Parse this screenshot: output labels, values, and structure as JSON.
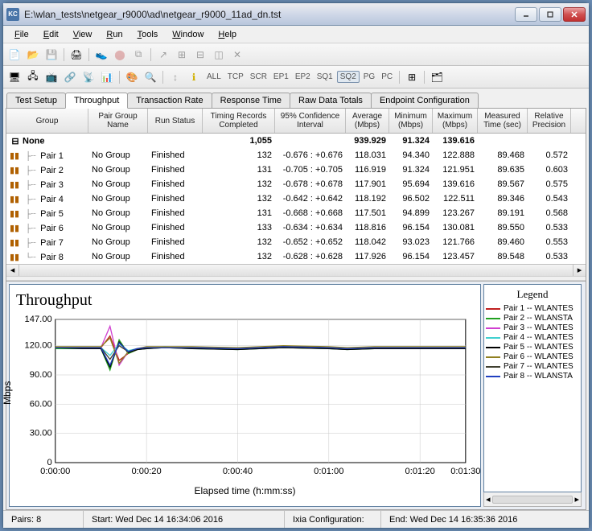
{
  "window": {
    "title": "E:\\wlan_tests\\netgear_r9000\\ad\\netgear_r9000_11ad_dn.tst",
    "icon_label": "KC"
  },
  "menus": [
    "File",
    "Edit",
    "View",
    "Run",
    "Tools",
    "Window",
    "Help"
  ],
  "tabs": {
    "items": [
      "Test Setup",
      "Throughput",
      "Transaction Rate",
      "Response Time",
      "Raw Data Totals",
      "Endpoint Configuration"
    ],
    "active": 1
  },
  "toolbar2_labels": [
    "ALL",
    "TCP",
    "SCR",
    "EP1",
    "EP2",
    "SQ1",
    "SQ2",
    "PG",
    "PC"
  ],
  "toolbar2_selected": "SQ2",
  "grid": {
    "columns": [
      {
        "label": "Group",
        "width": 102,
        "align": "l"
      },
      {
        "label": "Pair Group\nName",
        "width": 74,
        "align": "l"
      },
      {
        "label": "Run Status",
        "width": 68,
        "align": "l"
      },
      {
        "label": "Timing Records\nCompleted",
        "width": 90,
        "align": "r"
      },
      {
        "label": "95% Confidence\nInterval",
        "width": 88,
        "align": "r"
      },
      {
        "label": "Average\n(Mbps)",
        "width": 54,
        "align": "r"
      },
      {
        "label": "Minimum\n(Mbps)",
        "width": 54,
        "align": "r"
      },
      {
        "label": "Maximum\n(Mbps)",
        "width": 56,
        "align": "r"
      },
      {
        "label": "Measured\nTime (sec)",
        "width": 62,
        "align": "r"
      },
      {
        "label": "Relative\nPrecision",
        "width": 54,
        "align": "r"
      }
    ],
    "summary": {
      "label": "None",
      "timing": "1,055",
      "avg": "939.929",
      "min": "91.324",
      "max": "139.616"
    },
    "rows": [
      {
        "pair": "Pair 1",
        "group": "No Group",
        "status": "Finished",
        "timing": "132",
        "conf": "-0.676 : +0.676",
        "avg": "118.031",
        "min": "94.340",
        "max": "122.888",
        "time": "89.468",
        "prec": "0.572"
      },
      {
        "pair": "Pair 2",
        "group": "No Group",
        "status": "Finished",
        "timing": "131",
        "conf": "-0.705 : +0.705",
        "avg": "116.919",
        "min": "91.324",
        "max": "121.951",
        "time": "89.635",
        "prec": "0.603"
      },
      {
        "pair": "Pair 3",
        "group": "No Group",
        "status": "Finished",
        "timing": "132",
        "conf": "-0.678 : +0.678",
        "avg": "117.901",
        "min": "95.694",
        "max": "139.616",
        "time": "89.567",
        "prec": "0.575"
      },
      {
        "pair": "Pair 4",
        "group": "No Group",
        "status": "Finished",
        "timing": "132",
        "conf": "-0.642 : +0.642",
        "avg": "118.192",
        "min": "96.502",
        "max": "122.511",
        "time": "89.346",
        "prec": "0.543"
      },
      {
        "pair": "Pair 5",
        "group": "No Group",
        "status": "Finished",
        "timing": "131",
        "conf": "-0.668 : +0.668",
        "avg": "117.501",
        "min": "94.899",
        "max": "123.267",
        "time": "89.191",
        "prec": "0.568"
      },
      {
        "pair": "Pair 6",
        "group": "No Group",
        "status": "Finished",
        "timing": "133",
        "conf": "-0.634 : +0.634",
        "avg": "118.816",
        "min": "96.154",
        "max": "130.081",
        "time": "89.550",
        "prec": "0.533"
      },
      {
        "pair": "Pair 7",
        "group": "No Group",
        "status": "Finished",
        "timing": "132",
        "conf": "-0.652 : +0.652",
        "avg": "118.042",
        "min": "93.023",
        "max": "121.766",
        "time": "89.460",
        "prec": "0.553"
      },
      {
        "pair": "Pair 8",
        "group": "No Group",
        "status": "Finished",
        "timing": "132",
        "conf": "-0.628 : +0.628",
        "avg": "117.926",
        "min": "96.154",
        "max": "123.457",
        "time": "89.548",
        "prec": "0.533"
      }
    ]
  },
  "chart": {
    "title": "Throughput",
    "ylabel": "Mbps",
    "xlabel": "Elapsed time (h:mm:ss)",
    "yticks": [
      0,
      "30.00",
      "60.00",
      "90.00",
      "120.00",
      "147.00"
    ],
    "xticks": [
      "0:00:00",
      "0:00:20",
      "0:00:40",
      "0:01:00",
      "0:01:20",
      "0:01:30"
    ],
    "ylim": [
      0,
      147
    ],
    "xlim": [
      0,
      90
    ],
    "grid_color": "#c8c8c8",
    "background": "#ffffff",
    "series": [
      {
        "name": "Pair 1 -- WLANTES",
        "color": "#c02020"
      },
      {
        "name": "Pair 2 -- WLANSTA",
        "color": "#20a020"
      },
      {
        "name": "Pair 3 -- WLANTES",
        "color": "#d040d0"
      },
      {
        "name": "Pair 4 -- WLANTES",
        "color": "#40d0d0"
      },
      {
        "name": "Pair 5 -- WLANTES",
        "color": "#000000"
      },
      {
        "name": "Pair 6 -- WLANTES",
        "color": "#908020"
      },
      {
        "name": "Pair 7 -- WLANTES",
        "color": "#404030"
      },
      {
        "name": "Pair 8 -- WLANSTA",
        "color": "#2040c0"
      }
    ],
    "data_x": [
      0,
      6,
      10,
      12,
      14,
      16,
      18,
      20,
      24,
      30,
      40,
      50,
      60,
      64,
      70,
      80,
      90
    ],
    "data_y": [
      [
        118,
        118,
        118,
        130,
        105,
        112,
        116,
        118,
        118,
        118,
        117,
        119,
        118,
        117,
        118,
        118,
        118
      ],
      [
        117,
        117,
        117,
        95,
        126,
        112,
        116,
        117,
        118,
        117,
        116,
        118,
        117,
        116,
        117,
        117,
        117
      ],
      [
        118,
        118,
        118,
        140,
        100,
        114,
        117,
        118,
        118,
        118,
        117,
        119,
        118,
        117,
        118,
        118,
        118
      ],
      [
        118,
        118,
        118,
        110,
        122,
        115,
        117,
        118,
        119,
        118,
        117,
        119,
        118,
        117,
        118,
        118,
        118
      ],
      [
        118,
        117,
        117,
        98,
        124,
        113,
        116,
        117,
        118,
        117,
        116,
        118,
        117,
        116,
        117,
        117,
        117
      ],
      [
        119,
        119,
        119,
        128,
        102,
        114,
        117,
        119,
        119,
        119,
        118,
        120,
        119,
        118,
        119,
        119,
        119
      ],
      [
        118,
        118,
        118,
        106,
        120,
        114,
        117,
        118,
        118,
        118,
        117,
        119,
        118,
        117,
        118,
        118,
        118
      ],
      [
        118,
        118,
        118,
        100,
        123,
        114,
        117,
        118,
        118,
        118,
        117,
        119,
        118,
        117,
        118,
        118,
        118
      ]
    ]
  },
  "legend": {
    "title": "Legend"
  },
  "status": {
    "pairs": "Pairs: 8",
    "start": "Start: Wed Dec 14 16:34:06 2016",
    "config": "Ixia Configuration:",
    "end": "End: Wed Dec 14 16:35:36 2016"
  }
}
